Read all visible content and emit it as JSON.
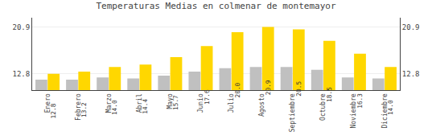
{
  "chart_data": {
    "type": "bar",
    "title": "Temperaturas Medias en colmenar de montemayor",
    "categories": [
      "Enero",
      "Febrero",
      "Marzo",
      "Abril",
      "Mayo",
      "Junio",
      "Julio",
      "Agosto",
      "Septiembre",
      "Octubre",
      "Noviembre",
      "Diciembre"
    ],
    "series": [
      {
        "color": "#C0C0C0",
        "values": [
          11.8,
          11.8,
          12.2,
          12.0,
          12.5,
          13.2,
          13.8,
          14.0,
          14.0,
          13.5,
          12.2,
          12.0
        ]
      },
      {
        "color": "#FFD700",
        "values": [
          12.8,
          13.2,
          14.0,
          14.4,
          15.7,
          17.6,
          20.0,
          20.9,
          20.5,
          18.5,
          16.3,
          14.0
        ],
        "data_labels": true,
        "value_labels": [
          "12.8",
          "13.2",
          "14.0",
          "14.4",
          "15.7",
          "17.6",
          "20.0",
          "20.9",
          "20.5",
          "18.5",
          "16.3",
          "14.0"
        ]
      }
    ],
    "ylim": [
      10.0,
      22.5
    ],
    "yticks": [
      12.8,
      20.9
    ],
    "y2lim": [
      10.0,
      22.5
    ],
    "y2ticks": [
      12.8,
      20.9
    ],
    "grid": true
  }
}
